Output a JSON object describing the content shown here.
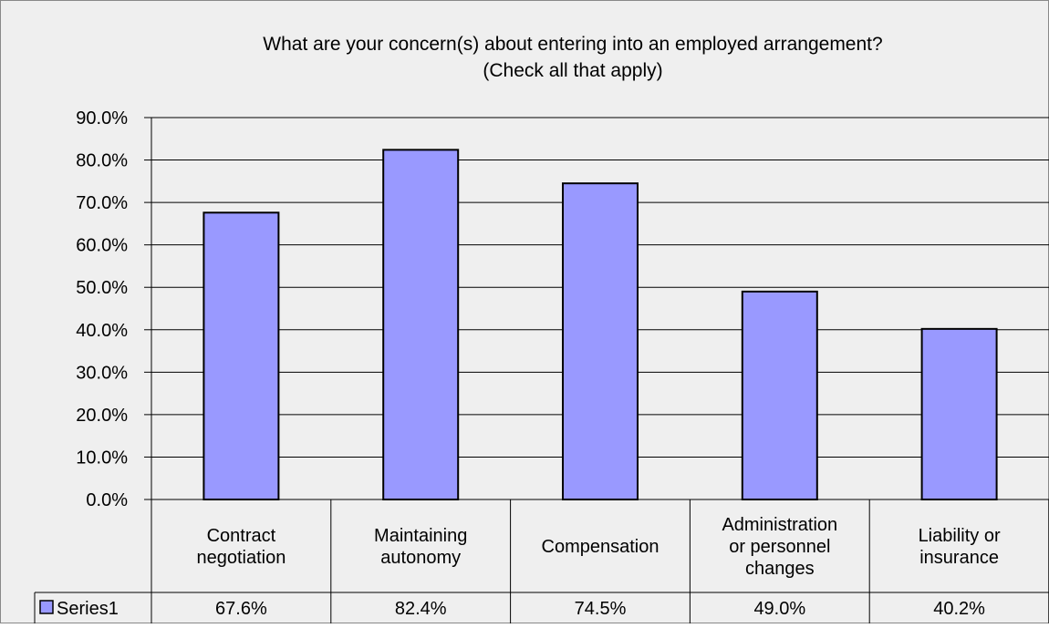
{
  "colors": {
    "background": "#efefef",
    "bar_fill": "#9999ff",
    "bar_stroke": "#000000",
    "gridline": "#000000",
    "text": "#000000"
  },
  "chart_data": {
    "type": "bar",
    "title_lines": [
      "What are your concern(s) about entering into an employed arrangement?",
      "(Check all that apply)"
    ],
    "categories": [
      [
        "Contract",
        "negotiation"
      ],
      [
        "Maintaining",
        "autonomy"
      ],
      [
        "Compensation"
      ],
      [
        "Administration",
        "or personnel",
        "changes"
      ],
      [
        "Liability or",
        "insurance"
      ]
    ],
    "series": [
      {
        "name": "Series1",
        "values": [
          67.6,
          82.4,
          74.5,
          49.0,
          40.2
        ],
        "value_labels": [
          "67.6%",
          "82.4%",
          "74.5%",
          "49.0%",
          "40.2%"
        ]
      }
    ],
    "y_ticks": [
      "0.0%",
      "10.0%",
      "20.0%",
      "30.0%",
      "40.0%",
      "50.0%",
      "60.0%",
      "70.0%",
      "80.0%",
      "90.0%"
    ],
    "ylim": [
      0,
      90
    ],
    "y_step": 10,
    "grid": true,
    "legend_placement": "data-table-row",
    "data_table": true
  }
}
